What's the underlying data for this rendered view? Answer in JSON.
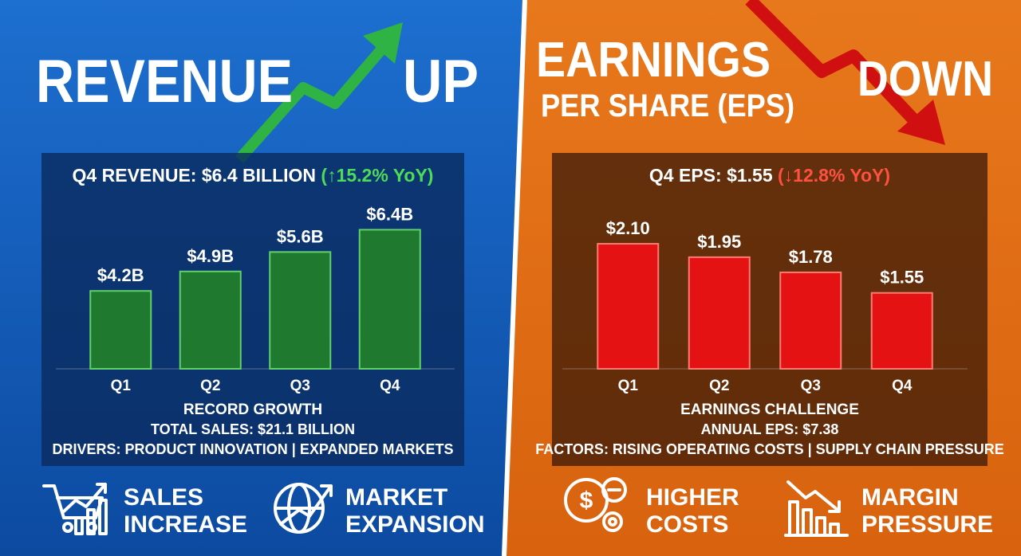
{
  "chart_data": [
    {
      "type": "bar",
      "title": "Q4 REVENUE: $6.4 BILLION",
      "change": "(↑15.2% YoY)",
      "change_color": "#4cdc5a",
      "categories": [
        "Q1",
        "Q2",
        "Q3",
        "Q4"
      ],
      "values": [
        4.2,
        4.9,
        5.6,
        6.4
      ],
      "value_labels": [
        "$4.2B",
        "$4.9B",
        "$5.6B",
        "$6.4B"
      ],
      "color": "#1f7a30",
      "ylim": [
        1.4,
        7.5
      ]
    },
    {
      "type": "bar",
      "title": "Q4 EPS: $1.55",
      "change": "(↓12.8% YoY)",
      "change_color": "#ff5040",
      "categories": [
        "Q1",
        "Q2",
        "Q3",
        "Q4"
      ],
      "values": [
        2.1,
        1.95,
        1.78,
        1.55
      ],
      "value_labels": [
        "$2.10",
        "$1.95",
        "$1.78",
        "$1.55"
      ],
      "color": "#e41212",
      "ylim": [
        0.7,
        2.6
      ]
    }
  ],
  "panels": [
    {
      "headline": [
        "REVENUE",
        "UP"
      ],
      "notes": [
        "RECORD GROWTH",
        "TOTAL SALES: $21.1 BILLION",
        "DRIVERS: PRODUCT INNOVATION | EXPANDED MARKETS"
      ],
      "features": [
        [
          "SALES",
          "INCREASE"
        ],
        [
          "MARKET",
          "EXPANSION"
        ]
      ]
    },
    {
      "headline": [
        "EARNINGS",
        "PER SHARE (EPS)",
        "DOWN"
      ],
      "notes": [
        "EARNINGS CHALLENGE",
        "ANNUAL EPS: $7.38",
        "FACTORS: RISING OPERATING COSTS | SUPPLY CHAIN PRESSURE"
      ],
      "features": [
        [
          "HIGHER",
          "COSTS"
        ],
        [
          "MARGIN",
          "PRESSURE"
        ]
      ]
    }
  ]
}
